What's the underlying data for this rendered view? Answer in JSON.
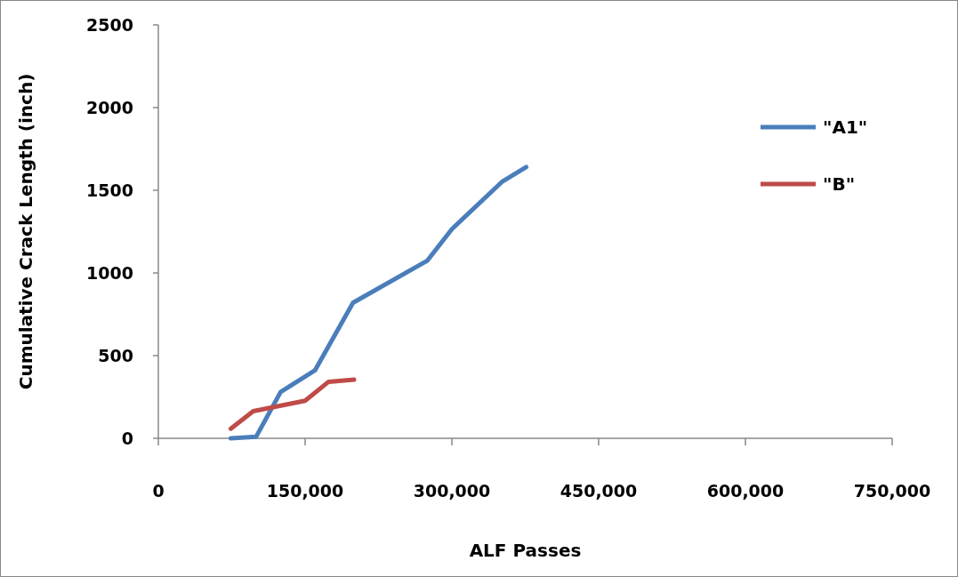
{
  "chart_data": {
    "type": "line",
    "xlabel": "ALF Passes",
    "ylabel": "Cumulative Crack Length (inch)",
    "xlim": [
      0,
      750000
    ],
    "xticks": [
      {
        "value": 0,
        "label": "0"
      },
      {
        "value": 150000,
        "label": "150,000"
      },
      {
        "value": 300000,
        "label": "300,000"
      },
      {
        "value": 450000,
        "label": "450,000"
      },
      {
        "value": 600000,
        "label": "600,000"
      },
      {
        "value": 750000,
        "label": "750,000"
      }
    ],
    "ylim": [
      0,
      2500
    ],
    "yticks": [
      0,
      500,
      1000,
      1500,
      2000,
      2500
    ],
    "grid": false,
    "legend": "right",
    "marker": "none",
    "line_style": "solid",
    "series": [
      {
        "name": "\"A1\"",
        "color": "#4a7ebb",
        "x": [
          74000,
          100000,
          125000,
          160000,
          199000,
          275000,
          300000,
          351000,
          376000
        ],
        "values": [
          0,
          10,
          280,
          410,
          820,
          1075,
          1265,
          1550,
          1640
        ]
      },
      {
        "name": "\"B\"",
        "color": "#be4b48",
        "x": [
          74000,
          97000,
          150000,
          174000,
          200000
        ],
        "values": [
          58,
          164,
          227,
          342,
          355
        ]
      }
    ]
  }
}
